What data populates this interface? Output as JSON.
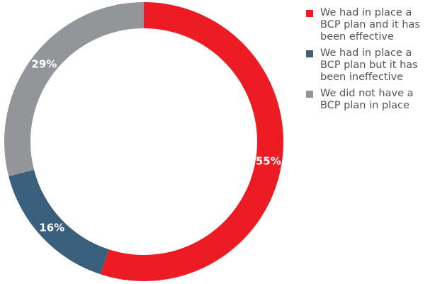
{
  "chart_data": {
    "type": "donut",
    "categories": [
      "We had in place a BCP plan and it has been effective",
      "We had in place a BCP plan but it has been ineffective",
      "We did not have a BCP plan in place"
    ],
    "values": [
      55,
      16,
      29
    ],
    "value_labels": [
      "55%",
      "16%",
      "29%"
    ],
    "colors": [
      "#ed1c24",
      "#3a5f7d",
      "#939598"
    ],
    "legend": "right"
  }
}
